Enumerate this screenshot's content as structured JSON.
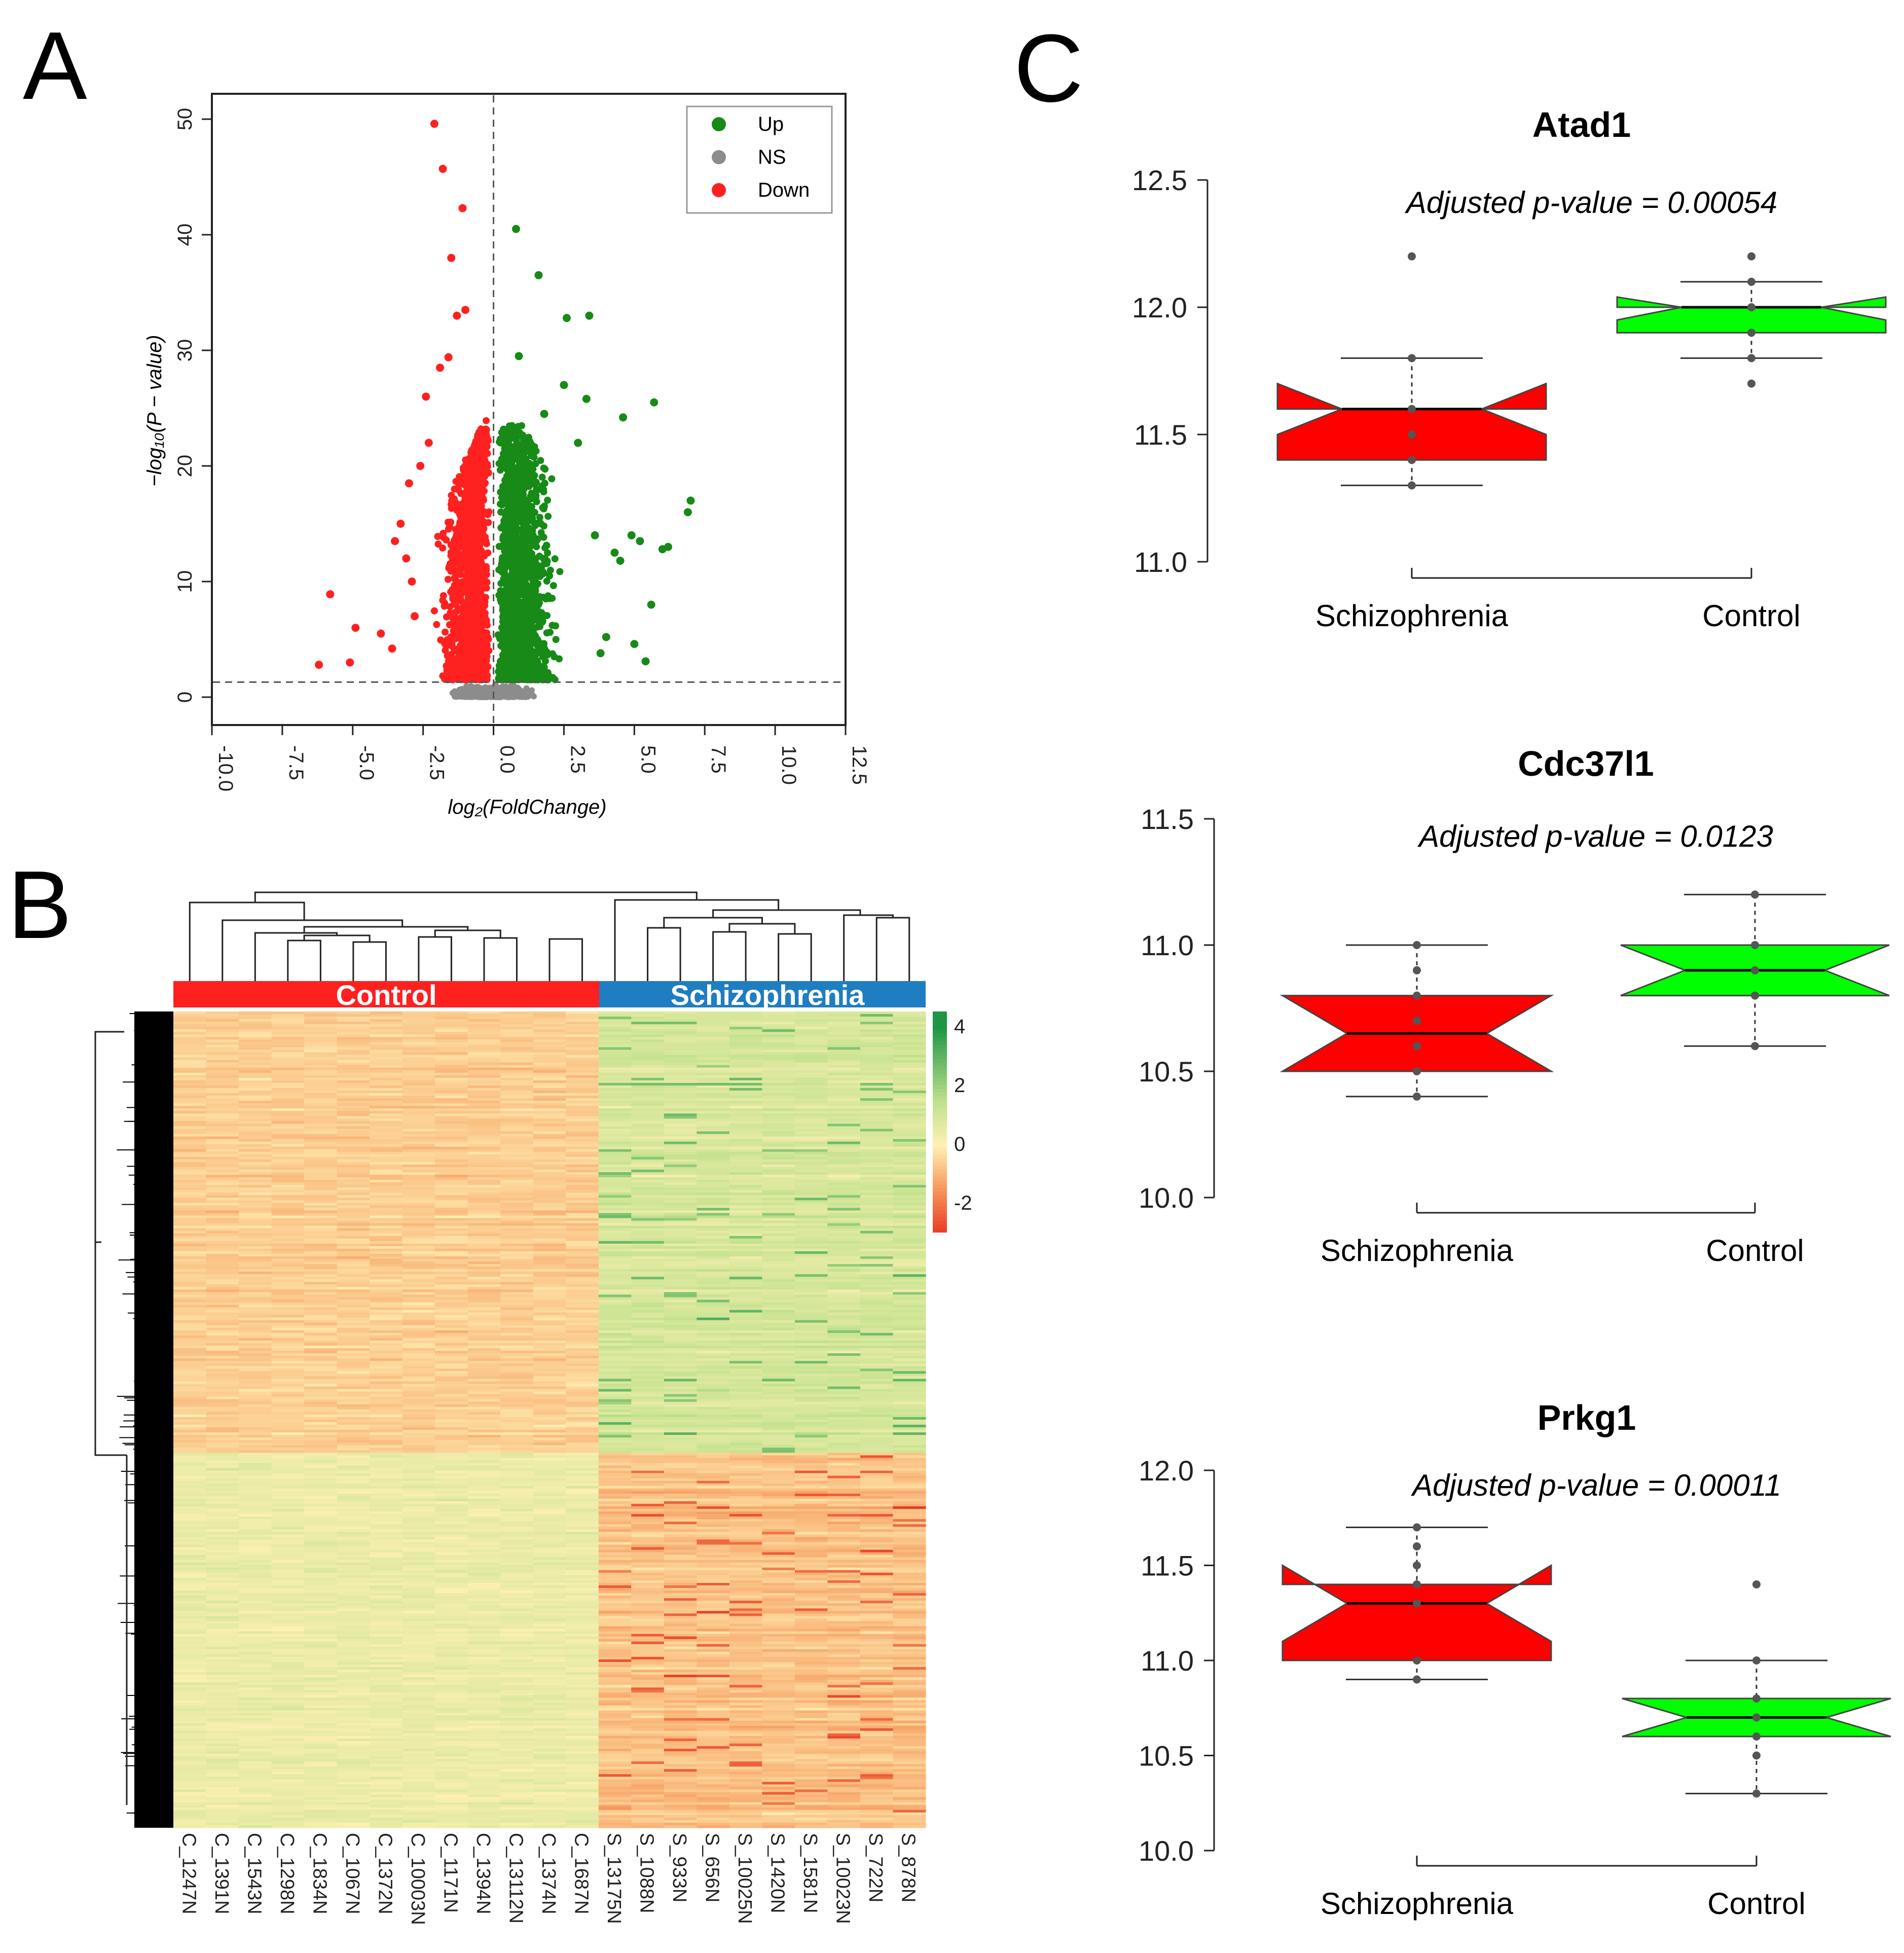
{
  "panels": {
    "A": "A",
    "B": "B",
    "C": "C"
  },
  "chart_data": [
    {
      "id": "volcano",
      "type": "scatter",
      "xlabel": "log₂(FoldChange)",
      "ylabel": "−log₁₀(P − value)",
      "xlim": [
        -10,
        12.5
      ],
      "ylim": [
        0,
        52
      ],
      "xticks": [
        "-10.0",
        "-7.5",
        "-5.0",
        "-2.5",
        "0.0",
        "2.5",
        "5.0",
        "7.5",
        "10.0",
        "12.5"
      ],
      "yticks": [
        "0",
        "10",
        "20",
        "30",
        "40",
        "50"
      ],
      "thresholds": {
        "x": 0,
        "y": 1.3
      },
      "legend": {
        "position": "top-right",
        "entries": [
          "Up",
          "NS",
          "Down"
        ]
      },
      "colors": {
        "up": "#178a17",
        "ns": "#8c8c8c",
        "down": "#ff2020"
      },
      "series": [
        {
          "name": "Up",
          "points": [
            [
              0.8,
              40.5
            ],
            [
              1.6,
              36.5
            ],
            [
              2.6,
              32.8
            ],
            [
              3.4,
              33
            ],
            [
              5.7,
              25.5
            ],
            [
              4.6,
              24.2
            ],
            [
              3.3,
              25.8
            ],
            [
              7,
              17
            ],
            [
              6.9,
              16
            ],
            [
              6.2,
              13
            ],
            [
              6.0,
              12.8
            ],
            [
              5.2,
              13.5
            ],
            [
              4.5,
              11.8
            ],
            [
              5.6,
              8
            ],
            [
              5.0,
              4.6
            ],
            [
              5.4,
              3.1
            ],
            [
              4.0,
              5.2
            ],
            [
              3.8,
              3.8
            ],
            [
              2.5,
              27
            ],
            [
              3.0,
              22
            ],
            [
              0.9,
              29.5
            ],
            [
              1.8,
              24.5
            ],
            [
              4.9,
              14
            ],
            [
              4.3,
              12.5
            ],
            [
              3.6,
              14
            ]
          ]
        },
        {
          "name": "Down",
          "points": [
            [
              -2.1,
              49.6
            ],
            [
              -1.8,
              45.7
            ],
            [
              -1.1,
              42.3
            ],
            [
              -1.0,
              33.5
            ],
            [
              -1.3,
              33
            ],
            [
              -1.6,
              29.4
            ],
            [
              -1.9,
              28.5
            ],
            [
              -2.6,
              20
            ],
            [
              -3.0,
              18.5
            ],
            [
              -3.3,
              15
            ],
            [
              -3.5,
              13.5
            ],
            [
              -5.8,
              8.9
            ],
            [
              -6.2,
              2.8
            ],
            [
              -4.9,
              6
            ],
            [
              -5.1,
              3
            ],
            [
              -4.0,
              5.5
            ],
            [
              -3.6,
              4.2
            ],
            [
              -2.8,
              7
            ],
            [
              -2.3,
              22
            ],
            [
              -2.4,
              26
            ],
            [
              -2.9,
              10
            ],
            [
              -3.1,
              12
            ],
            [
              -1.5,
              38
            ]
          ]
        }
      ]
    },
    {
      "id": "heatmap",
      "type": "heatmap",
      "groups": [
        {
          "label": "Control",
          "color": "#ff2020",
          "count": 13
        },
        {
          "label": "Schizophrenia",
          "color": "#1f7dc2",
          "count": 10
        }
      ],
      "samples": [
        "C_1247N",
        "C_1391N",
        "C_1543N",
        "C_1298N",
        "C_1834N",
        "C_1067N",
        "C_1372N",
        "C_10003N",
        "C_1171N",
        "C_1394N",
        "C_13112N",
        "C_1374N",
        "C_1687N",
        "S_13175N",
        "S_1088N",
        "S_933N",
        "S_656N",
        "S_10025N",
        "S_1420N",
        "S_1581N",
        "S_10023N",
        "S_722N",
        "S_878N"
      ],
      "colorbar": {
        "ticks": [
          "4",
          "2",
          "0",
          "-2"
        ],
        "range": [
          -3,
          4.5
        ]
      }
    },
    {
      "id": "box-atad1",
      "type": "box",
      "title": "Atad1",
      "annotation_label": "Adjusted p-value",
      "annotation_value": "= 0.00054",
      "ylim": [
        11.0,
        12.5
      ],
      "yticks": [
        "12.5",
        "12.0",
        "11.5",
        "11.0"
      ],
      "categories": [
        "Schizophrenia",
        "Control"
      ],
      "boxes": [
        {
          "group": "Schizophrenia",
          "color": "#ff0000",
          "q1": 11.4,
          "median": 11.6,
          "q3": 11.6,
          "notch_low": 11.5,
          "notch_high": 11.7,
          "whisker_low": 11.3,
          "whisker_high": 11.8,
          "points": [
            11.3,
            11.4,
            11.5,
            11.6,
            11.6,
            11.8,
            12.2
          ]
        },
        {
          "group": "Control",
          "color": "#00ff00",
          "q1": 11.9,
          "median": 12.0,
          "q3": 12.0,
          "notch_low": 11.95,
          "notch_high": 12.04,
          "whisker_low": 11.8,
          "whisker_high": 12.1,
          "points": [
            11.7,
            11.8,
            11.9,
            12.0,
            12.0,
            12.1,
            12.2
          ]
        }
      ]
    },
    {
      "id": "box-cdc37l1",
      "type": "box",
      "title": "Cdc37l1",
      "annotation_label": "Adjusted p-value",
      "annotation_value": "= 0.0123",
      "ylim": [
        10.0,
        11.5
      ],
      "yticks": [
        "11.5",
        "11.0",
        "10.5",
        "10.0"
      ],
      "categories": [
        "Schizophrenia",
        "Control"
      ],
      "boxes": [
        {
          "group": "Schizophrenia",
          "color": "#ff0000",
          "q1": 10.5,
          "median": 10.65,
          "q3": 10.8,
          "notch_low": 10.5,
          "notch_high": 10.8,
          "whisker_low": 10.4,
          "whisker_high": 11.0,
          "points": [
            10.4,
            10.5,
            10.6,
            10.7,
            10.8,
            10.9,
            11.0
          ]
        },
        {
          "group": "Control",
          "color": "#00ff00",
          "q1": 10.8,
          "median": 10.9,
          "q3": 11.0,
          "notch_low": 10.8,
          "notch_high": 11.0,
          "whisker_low": 10.6,
          "whisker_high": 11.2,
          "points": [
            10.6,
            10.8,
            10.9,
            11.0,
            11.2
          ]
        }
      ]
    },
    {
      "id": "box-prkg1",
      "type": "box",
      "title": "Prkg1",
      "annotation_label": "Adjusted p-value",
      "annotation_value": "= 0.00011",
      "ylim": [
        10.0,
        12.0
      ],
      "yticks": [
        "12.0",
        "11.5",
        "11.0",
        "10.5",
        "10.0"
      ],
      "categories": [
        "Schizophrenia",
        "Control"
      ],
      "boxes": [
        {
          "group": "Schizophrenia",
          "color": "#ff0000",
          "q1": 11.0,
          "median": 11.3,
          "q3": 11.4,
          "notch_low": 11.1,
          "notch_high": 11.5,
          "whisker_low": 10.9,
          "whisker_high": 11.7,
          "points": [
            10.9,
            11.0,
            11.3,
            11.4,
            11.5,
            11.6,
            11.7
          ]
        },
        {
          "group": "Control",
          "color": "#00ff00",
          "q1": 10.6,
          "median": 10.7,
          "q3": 10.8,
          "notch_low": 10.6,
          "notch_high": 10.8,
          "whisker_low": 10.3,
          "whisker_high": 11.0,
          "points": [
            10.3,
            10.5,
            10.6,
            10.7,
            10.8,
            11.0,
            11.4
          ]
        }
      ]
    }
  ]
}
